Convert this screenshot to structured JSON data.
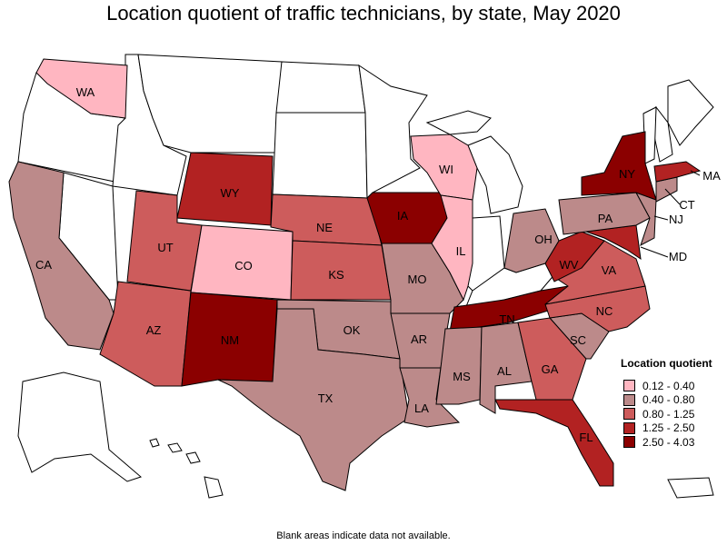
{
  "title": "Location quotient of traffic technicians, by state, May 2020",
  "footnote": "Blank areas indicate data not available.",
  "legend": {
    "title": "Location quotient",
    "bins": [
      {
        "label": "0.12 - 0.40",
        "color": "#ffb6c1"
      },
      {
        "label": "0.40 - 0.80",
        "color": "#bc8a8a"
      },
      {
        "label": "0.80 - 1.25",
        "color": "#cd5c5c"
      },
      {
        "label": "1.25 - 2.50",
        "color": "#b22222"
      },
      {
        "label": "2.50 - 4.03",
        "color": "#8b0000"
      }
    ]
  },
  "states": {
    "WA": {
      "label": "WA",
      "bin": 0
    },
    "WI": {
      "label": "WI",
      "bin": 0
    },
    "IL": {
      "label": "IL",
      "bin": 0
    },
    "CO": {
      "label": "CO",
      "bin": 0
    },
    "CA": {
      "label": "CA",
      "bin": 1
    },
    "OH": {
      "label": "OH",
      "bin": 1
    },
    "PA": {
      "label": "PA",
      "bin": 1
    },
    "MO": {
      "label": "MO",
      "bin": 1
    },
    "OK": {
      "label": "OK",
      "bin": 1
    },
    "AR": {
      "label": "AR",
      "bin": 1
    },
    "TX": {
      "label": "TX",
      "bin": 1
    },
    "LA": {
      "label": "LA",
      "bin": 1
    },
    "MS": {
      "label": "MS",
      "bin": 1
    },
    "AL": {
      "label": "AL",
      "bin": 1
    },
    "SC": {
      "label": "SC",
      "bin": 1
    },
    "CT": {
      "label": "CT",
      "bin": 1
    },
    "NJ": {
      "label": "NJ",
      "bin": 1
    },
    "UT": {
      "label": "UT",
      "bin": 2
    },
    "NE": {
      "label": "NE",
      "bin": 2
    },
    "KS": {
      "label": "KS",
      "bin": 2
    },
    "AZ": {
      "label": "AZ",
      "bin": 2
    },
    "GA": {
      "label": "GA",
      "bin": 2
    },
    "NC": {
      "label": "NC",
      "bin": 2
    },
    "VA": {
      "label": "VA",
      "bin": 2
    },
    "WY": {
      "label": "WY",
      "bin": 3
    },
    "FL": {
      "label": "FL",
      "bin": 3
    },
    "WV": {
      "label": "WV",
      "bin": 3
    },
    "MD": {
      "label": "MD",
      "bin": 3
    },
    "MA": {
      "label": "MA",
      "bin": 3
    },
    "IA": {
      "label": "IA",
      "bin": 4
    },
    "NM": {
      "label": "NM",
      "bin": 4
    },
    "TN": {
      "label": "TN",
      "bin": 4
    },
    "NY": {
      "label": "NY",
      "bin": 4
    }
  }
}
